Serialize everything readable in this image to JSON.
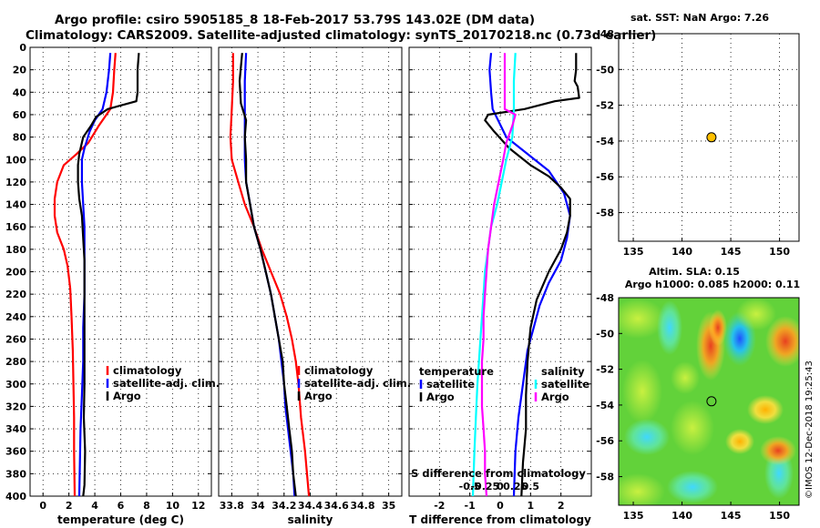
{
  "header": {
    "line1": "Argo profile: csiro 5905185_8 18-Feb-2017 53.79S 143.02E (DM data)",
    "line2": "Climatology: CARS2009. Satellite-adjusted climatology: synTS_20170218.nc (0.73d earlier)"
  },
  "colors": {
    "climatology": "#ff0000",
    "satellite": "#0000ff",
    "argo": "#000000",
    "sat_t": "#00ffff",
    "sat_s": "#ff00ff"
  },
  "chart_data": [
    {
      "id": "temperature",
      "type": "line",
      "xlabel": "temperature (deg C)",
      "xlim": [
        -1,
        13
      ],
      "xticks": [
        0,
        2,
        4,
        6,
        8,
        10,
        12
      ],
      "xtick_labels": [
        "0",
        "2",
        "4",
        "6",
        "8",
        "10",
        "12"
      ],
      "ylim": [
        0,
        400
      ],
      "yticks": [
        0,
        20,
        40,
        60,
        80,
        100,
        120,
        140,
        160,
        180,
        200,
        220,
        240,
        260,
        280,
        300,
        320,
        340,
        360,
        380,
        400
      ],
      "legend": [
        "climatology",
        "satellite-adj. clim.",
        "Argo"
      ],
      "series": [
        {
          "name": "climatology",
          "color": "#ff0000",
          "points": [
            [
              5.6,
              5
            ],
            [
              5.5,
              20
            ],
            [
              5.4,
              40
            ],
            [
              5.2,
              55
            ],
            [
              4.3,
              70
            ],
            [
              3.5,
              85
            ],
            [
              2.6,
              95
            ],
            [
              1.6,
              105
            ],
            [
              1.1,
              120
            ],
            [
              0.9,
              135
            ],
            [
              0.9,
              150
            ],
            [
              1.1,
              165
            ],
            [
              1.6,
              180
            ],
            [
              1.9,
              195
            ],
            [
              2.1,
              215
            ],
            [
              2.2,
              240
            ],
            [
              2.3,
              270
            ],
            [
              2.35,
              300
            ],
            [
              2.4,
              330
            ],
            [
              2.4,
              360
            ],
            [
              2.45,
              400
            ]
          ]
        },
        {
          "name": "satellite-adj. clim.",
          "color": "#0000ff",
          "points": [
            [
              5.2,
              5
            ],
            [
              5.1,
              20
            ],
            [
              4.9,
              40
            ],
            [
              4.6,
              55
            ],
            [
              4.0,
              65
            ],
            [
              3.6,
              75
            ],
            [
              3.2,
              90
            ],
            [
              3.0,
              100
            ],
            [
              3.0,
              120
            ],
            [
              3.1,
              140
            ],
            [
              3.2,
              160
            ],
            [
              3.2,
              180
            ],
            [
              3.2,
              200
            ],
            [
              3.2,
              220
            ],
            [
              3.1,
              250
            ],
            [
              3.1,
              280
            ],
            [
              3.0,
              310
            ],
            [
              2.9,
              340
            ],
            [
              2.85,
              370
            ],
            [
              2.8,
              400
            ]
          ]
        },
        {
          "name": "Argo",
          "color": "#000000",
          "points": [
            [
              7.4,
              5
            ],
            [
              7.3,
              20
            ],
            [
              7.3,
              40
            ],
            [
              7.2,
              48
            ],
            [
              5.0,
              55
            ],
            [
              4.1,
              62
            ],
            [
              3.7,
              70
            ],
            [
              3.1,
              80
            ],
            [
              2.8,
              95
            ],
            [
              2.7,
              105
            ],
            [
              2.7,
              120
            ],
            [
              2.8,
              135
            ],
            [
              3.0,
              150
            ],
            [
              3.1,
              170
            ],
            [
              3.2,
              190
            ],
            [
              3.2,
              220
            ],
            [
              3.2,
              260
            ],
            [
              3.2,
              300
            ],
            [
              3.15,
              330
            ],
            [
              3.25,
              360
            ],
            [
              3.2,
              390
            ],
            [
              3.1,
              400
            ]
          ]
        }
      ]
    },
    {
      "id": "salinity",
      "type": "line",
      "xlabel": "salinity",
      "xlim": [
        33.7,
        35.1
      ],
      "xticks": [
        33.8,
        34,
        34.2,
        34.4,
        34.6,
        34.8,
        35
      ],
      "xtick_labels": [
        "33.8",
        "34",
        "34.2",
        "34.4",
        "34.6",
        "34.8",
        "35"
      ],
      "ylim": [
        0,
        400
      ],
      "legend": [
        "climatology",
        "satellite-adj. clim.",
        "Argo"
      ],
      "series": [
        {
          "name": "climatology",
          "color": "#ff0000",
          "points": [
            [
              33.81,
              5
            ],
            [
              33.81,
              30
            ],
            [
              33.8,
              55
            ],
            [
              33.79,
              80
            ],
            [
              33.8,
              100
            ],
            [
              33.85,
              120
            ],
            [
              33.9,
              140
            ],
            [
              33.97,
              160
            ],
            [
              34.03,
              180
            ],
            [
              34.1,
              200
            ],
            [
              34.17,
              220
            ],
            [
              34.22,
              240
            ],
            [
              34.26,
              260
            ],
            [
              34.29,
              280
            ],
            [
              34.31,
              300
            ],
            [
              34.33,
              330
            ],
            [
              34.36,
              360
            ],
            [
              34.39,
              400
            ]
          ]
        },
        {
          "name": "satellite-adj. clim.",
          "color": "#0000ff",
          "points": [
            [
              33.91,
              5
            ],
            [
              33.9,
              30
            ],
            [
              33.9,
              50
            ],
            [
              33.9,
              80
            ],
            [
              33.9,
              100
            ],
            [
              33.91,
              120
            ],
            [
              33.94,
              140
            ],
            [
              33.97,
              160
            ],
            [
              34.02,
              180
            ],
            [
              34.06,
              200
            ],
            [
              34.1,
              220
            ],
            [
              34.13,
              240
            ],
            [
              34.16,
              260
            ],
            [
              34.18,
              280
            ],
            [
              34.2,
              300
            ],
            [
              34.21,
              320
            ],
            [
              34.23,
              340
            ],
            [
              34.25,
              360
            ],
            [
              34.27,
              380
            ],
            [
              34.28,
              400
            ]
          ]
        },
        {
          "name": "Argo",
          "color": "#000000",
          "points": [
            [
              33.88,
              5
            ],
            [
              33.86,
              30
            ],
            [
              33.87,
              50
            ],
            [
              33.91,
              65
            ],
            [
              33.9,
              80
            ],
            [
              33.91,
              100
            ],
            [
              33.91,
              120
            ],
            [
              33.94,
              140
            ],
            [
              33.97,
              160
            ],
            [
              34.02,
              180
            ],
            [
              34.06,
              200
            ],
            [
              34.1,
              220
            ],
            [
              34.13,
              240
            ],
            [
              34.16,
              260
            ],
            [
              34.19,
              280
            ],
            [
              34.2,
              300
            ],
            [
              34.22,
              320
            ],
            [
              34.24,
              340
            ],
            [
              34.26,
              360
            ],
            [
              34.27,
              380
            ],
            [
              34.29,
              400
            ]
          ]
        }
      ]
    },
    {
      "id": "difference",
      "type": "line",
      "xlabel": "T difference from climatology",
      "top_label": "S difference from climatology",
      "xlim": [
        -3,
        3
      ],
      "xticks": [
        -2,
        -1,
        0,
        1,
        2
      ],
      "xtick_labels": [
        "-2",
        "-1",
        "0",
        "1",
        "2"
      ],
      "sticks": [
        -1,
        -0.5,
        0,
        0.5,
        1
      ],
      "stick_labels": [
        "-0.5",
        "-0.25",
        "0",
        "0.25",
        "0.5"
      ],
      "ylim": [
        0,
        400
      ],
      "legend_left_title": "temperature",
      "legend_right_title": "salinity",
      "legend_left": [
        "satellite",
        "Argo"
      ],
      "legend_right": [
        "satellite",
        "Argo"
      ],
      "series": [
        {
          "name": "T satellite",
          "color": "#0000ff",
          "points": [
            [
              -0.3,
              5
            ],
            [
              -0.35,
              20
            ],
            [
              -0.3,
              40
            ],
            [
              -0.25,
              55
            ],
            [
              0.2,
              80
            ],
            [
              0.9,
              95
            ],
            [
              1.6,
              110
            ],
            [
              2.1,
              130
            ],
            [
              2.3,
              150
            ],
            [
              2.2,
              170
            ],
            [
              2.0,
              190
            ],
            [
              1.6,
              210
            ],
            [
              1.3,
              230
            ],
            [
              1.1,
              250
            ],
            [
              0.9,
              270
            ],
            [
              0.75,
              300
            ],
            [
              0.6,
              330
            ],
            [
              0.5,
              360
            ],
            [
              0.45,
              400
            ]
          ]
        },
        {
          "name": "T Argo",
          "color": "#000000",
          "points": [
            [
              2.5,
              5
            ],
            [
              2.5,
              20
            ],
            [
              2.45,
              30
            ],
            [
              2.55,
              35
            ],
            [
              2.6,
              45
            ],
            [
              1.8,
              48
            ],
            [
              0.8,
              55
            ],
            [
              -0.4,
              60
            ],
            [
              -0.5,
              65
            ],
            [
              -0.2,
              75
            ],
            [
              0.3,
              90
            ],
            [
              1.0,
              105
            ],
            [
              1.6,
              115
            ],
            [
              2.0,
              125
            ],
            [
              2.3,
              135
            ],
            [
              2.3,
              150
            ],
            [
              2.2,
              165
            ],
            [
              2.0,
              180
            ],
            [
              1.6,
              200
            ],
            [
              1.2,
              225
            ],
            [
              1.0,
              250
            ],
            [
              0.9,
              280
            ],
            [
              0.85,
              310
            ],
            [
              0.85,
              340
            ],
            [
              0.75,
              370
            ],
            [
              0.7,
              400
            ]
          ]
        },
        {
          "name": "S satellite",
          "color": "#00ffff",
          "points": [
            [
              0.5,
              5
            ],
            [
              0.45,
              30
            ],
            [
              0.45,
              55
            ],
            [
              0.4,
              80
            ],
            [
              0.2,
              100
            ],
            [
              0.05,
              120
            ],
            [
              -0.1,
              140
            ],
            [
              -0.3,
              160
            ],
            [
              -0.4,
              180
            ],
            [
              -0.5,
              200
            ],
            [
              -0.55,
              220
            ],
            [
              -0.6,
              240
            ],
            [
              -0.65,
              260
            ],
            [
              -0.7,
              280
            ],
            [
              -0.75,
              300
            ],
            [
              -0.8,
              330
            ],
            [
              -0.85,
              360
            ],
            [
              -0.9,
              400
            ]
          ]
        },
        {
          "name": "S Argo",
          "color": "#ff00ff",
          "points": [
            [
              0.15,
              5
            ],
            [
              0.15,
              30
            ],
            [
              0.15,
              55
            ],
            [
              0.5,
              60
            ],
            [
              0.4,
              70
            ],
            [
              0.2,
              85
            ],
            [
              0.1,
              100
            ],
            [
              -0.05,
              120
            ],
            [
              -0.2,
              140
            ],
            [
              -0.3,
              160
            ],
            [
              -0.4,
              180
            ],
            [
              -0.45,
              200
            ],
            [
              -0.5,
              220
            ],
            [
              -0.55,
              240
            ],
            [
              -0.55,
              260
            ],
            [
              -0.6,
              280
            ],
            [
              -0.6,
              300
            ],
            [
              -0.6,
              320
            ],
            [
              -0.55,
              340
            ],
            [
              -0.5,
              360
            ],
            [
              -0.5,
              380
            ],
            [
              -0.45,
              400
            ]
          ]
        }
      ]
    },
    {
      "id": "sat-sst-map",
      "type": "scatter",
      "title": "sat. SST: NaN Argo: 7.26",
      "xlim": [
        133.5,
        152
      ],
      "ylim": [
        -59.6,
        -48
      ],
      "xticks": [
        135,
        140,
        145,
        150
      ],
      "yticks": [
        -48,
        -50,
        -52,
        -54,
        -56,
        -58
      ],
      "points": [
        [
          143.02,
          -53.79
        ]
      ]
    },
    {
      "id": "altimetry-map",
      "type": "heatmap",
      "title1": "Altim. SLA: 0.15",
      "title2": "Argo h1000: 0.085 h2000: 0.11",
      "xlim": [
        133.5,
        152
      ],
      "ylim": [
        -59.6,
        -48
      ],
      "xticks": [
        135,
        140,
        145,
        150
      ],
      "yticks": [
        -48,
        -50,
        -52,
        -54,
        -56,
        -58
      ],
      "points": [
        [
          143.02,
          -53.79
        ]
      ]
    }
  ],
  "watermark": "©IMOS 12-Dec-2018 19:25:43"
}
